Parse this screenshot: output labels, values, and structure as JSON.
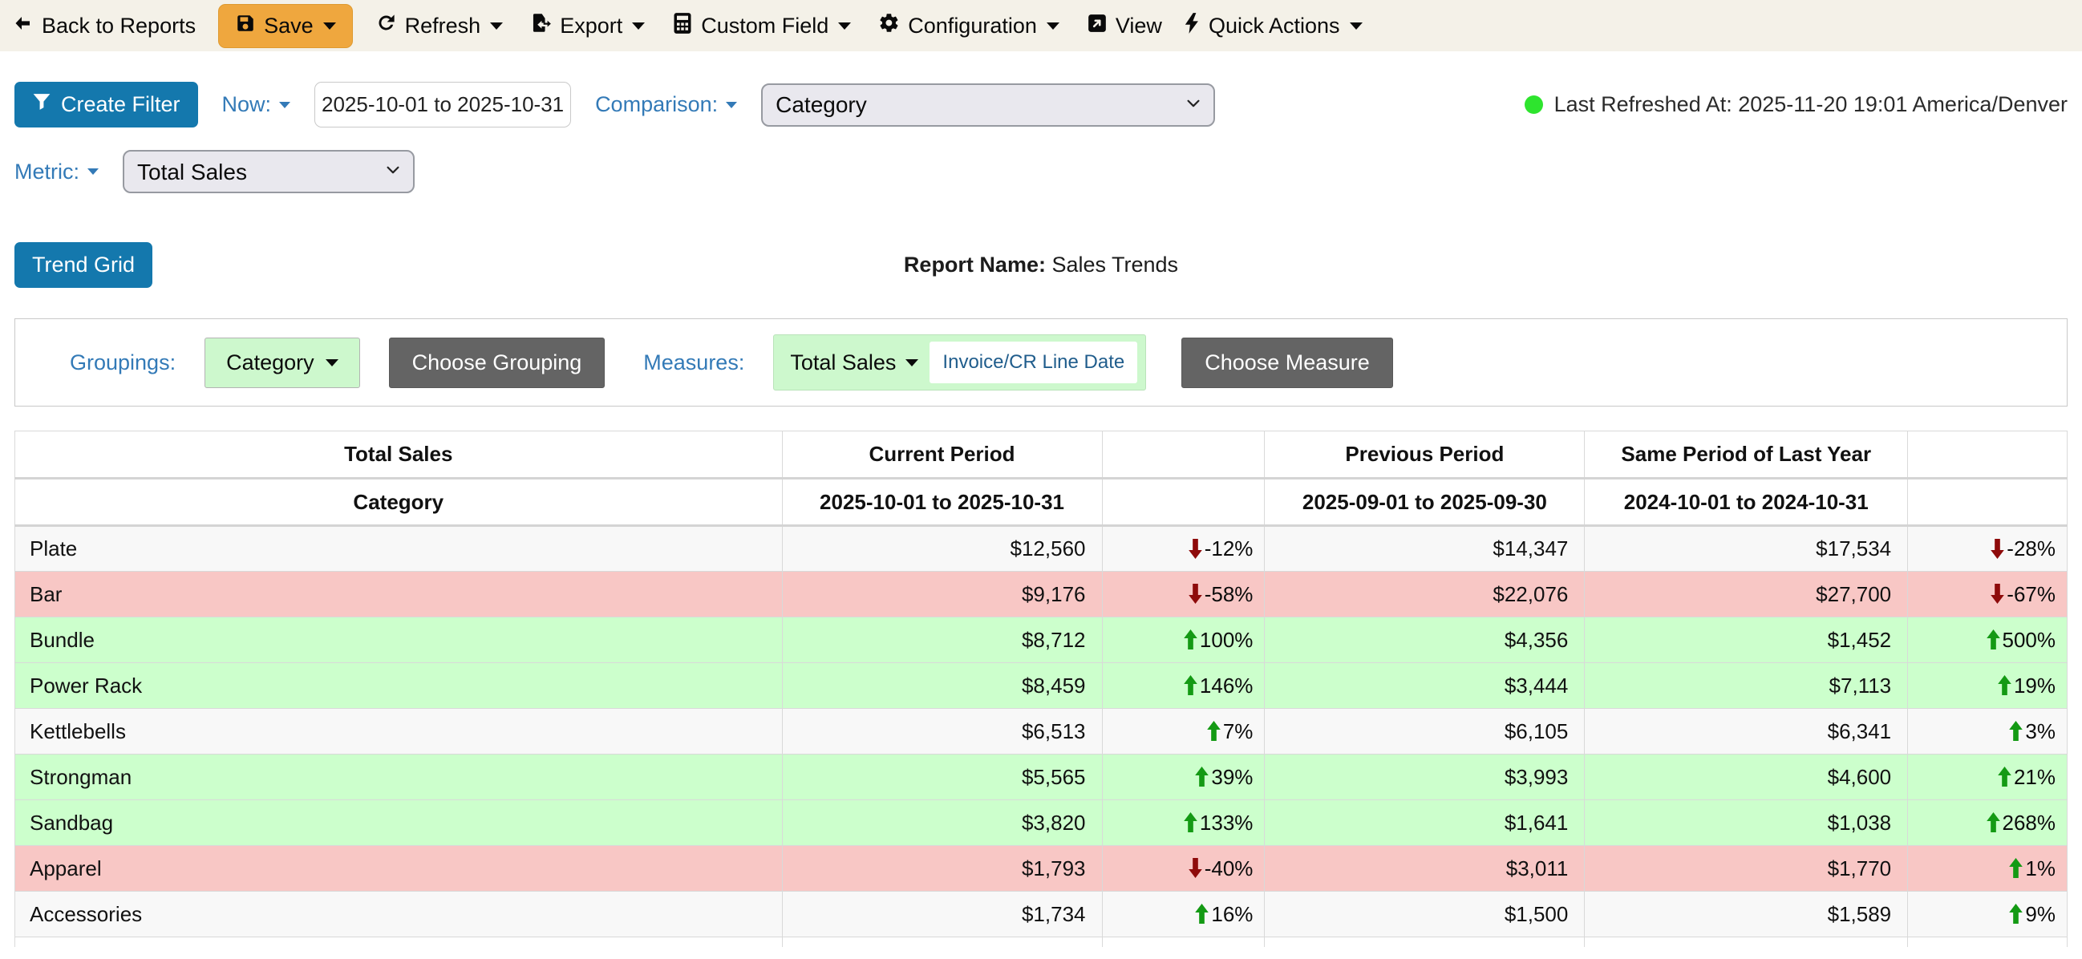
{
  "toolbar": {
    "back_label": "Back to Reports",
    "save_label": "Save",
    "refresh_label": "Refresh",
    "export_label": "Export",
    "custom_field_label": "Custom Field",
    "configuration_label": "Configuration",
    "view_label": "View",
    "quick_actions_label": "Quick Actions"
  },
  "filters": {
    "create_filter_label": "Create Filter",
    "now_label": "Now:",
    "date_range_value": "2025-10-01 to 2025-10-31",
    "comparison_label": "Comparison:",
    "comparison_value": "Category",
    "metric_label": "Metric:",
    "metric_value": "Total Sales",
    "last_refreshed_text": "Last Refreshed At: 2025-11-20 19:01 America/Denver"
  },
  "report": {
    "trend_grid_label": "Trend Grid",
    "report_name_label": "Report Name:",
    "report_name_value": "Sales Trends"
  },
  "builder": {
    "groupings_label": "Groupings:",
    "grouping_value": "Category",
    "choose_grouping_label": "Choose Grouping",
    "measures_label": "Measures:",
    "measure_value": "Total Sales",
    "measure_date_field": "Invoice/CR Line Date",
    "choose_measure_label": "Choose Measure"
  },
  "colors": {
    "accent_blue": "#1478ad",
    "link_blue": "#337ab7",
    "save_orange": "#efa73e",
    "row_green": "#ccffcc",
    "row_red": "#f8c7c5",
    "arrow_up_green": "#149a14",
    "arrow_down_red": "#8e0b0b",
    "status_dot_green": "#2ee42e",
    "toolbar_beige": "#f4f1e8"
  },
  "table": {
    "metric_header": "Total Sales",
    "group_header": "Category",
    "columns": [
      {
        "label": "Current Period",
        "sub": "2025-10-01 to 2025-10-31"
      },
      {
        "label": "",
        "sub": ""
      },
      {
        "label": "Previous Period",
        "sub": "2025-09-01 to 2025-09-30"
      },
      {
        "label": "Same Period of Last Year",
        "sub": "2024-10-01 to 2024-10-31"
      },
      {
        "label": "",
        "sub": ""
      }
    ],
    "rows": [
      {
        "category": "Plate",
        "current": "$12,560",
        "change1": "-12%",
        "dir1": "down",
        "previous": "$14,347",
        "same_period": "$17,534",
        "change2": "-28%",
        "dir2": "down",
        "highlight": "none"
      },
      {
        "category": "Bar",
        "current": "$9,176",
        "change1": "-58%",
        "dir1": "down",
        "previous": "$22,076",
        "same_period": "$27,700",
        "change2": "-67%",
        "dir2": "down",
        "highlight": "red"
      },
      {
        "category": "Bundle",
        "current": "$8,712",
        "change1": "100%",
        "dir1": "up",
        "previous": "$4,356",
        "same_period": "$1,452",
        "change2": "500%",
        "dir2": "up",
        "highlight": "green"
      },
      {
        "category": "Power Rack",
        "current": "$8,459",
        "change1": "146%",
        "dir1": "up",
        "previous": "$3,444",
        "same_period": "$7,113",
        "change2": "19%",
        "dir2": "up",
        "highlight": "green"
      },
      {
        "category": "Kettlebells",
        "current": "$6,513",
        "change1": "7%",
        "dir1": "up",
        "previous": "$6,105",
        "same_period": "$6,341",
        "change2": "3%",
        "dir2": "up",
        "highlight": "none"
      },
      {
        "category": "Strongman",
        "current": "$5,565",
        "change1": "39%",
        "dir1": "up",
        "previous": "$3,993",
        "same_period": "$4,600",
        "change2": "21%",
        "dir2": "up",
        "highlight": "green"
      },
      {
        "category": "Sandbag",
        "current": "$3,820",
        "change1": "133%",
        "dir1": "up",
        "previous": "$1,641",
        "same_period": "$1,038",
        "change2": "268%",
        "dir2": "up",
        "highlight": "green"
      },
      {
        "category": "Apparel",
        "current": "$1,793",
        "change1": "-40%",
        "dir1": "down",
        "previous": "$3,011",
        "same_period": "$1,770",
        "change2": "1%",
        "dir2": "up",
        "highlight": "red"
      },
      {
        "category": "Accessories",
        "current": "$1,734",
        "change1": "16%",
        "dir1": "up",
        "previous": "$1,500",
        "same_period": "$1,589",
        "change2": "9%",
        "dir2": "up",
        "highlight": "none"
      }
    ]
  }
}
